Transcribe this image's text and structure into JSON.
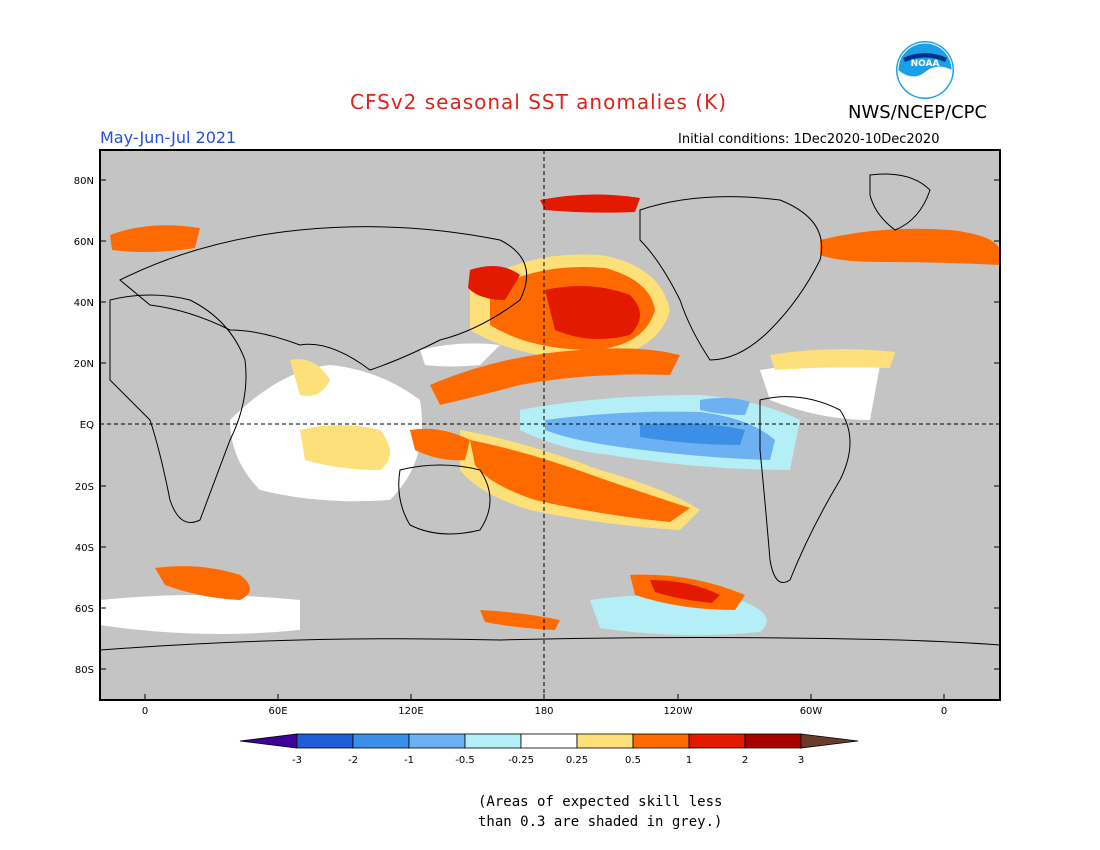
{
  "header": {
    "title": "CFSv2 seasonal SST anomalies (K)",
    "period": "May-Jun-Jul 2021",
    "agency": "NWS/NCEP/CPC",
    "initial_conditions": "Initial conditions: 1Dec2020-10Dec2020",
    "logo_text": "NOAA"
  },
  "map": {
    "lat_labels": [
      "80N",
      "60N",
      "40N",
      "20N",
      "EQ",
      "20S",
      "40S",
      "60S",
      "80S"
    ],
    "lon_labels": [
      "0",
      "60E",
      "120E",
      "180",
      "120W",
      "60W",
      "0"
    ],
    "grey_meaning": "Areas of expected skill less than 0.3 are shaded in grey."
  },
  "legend": {
    "tick_labels": [
      "-3",
      "-2",
      "-1",
      "-0.5",
      "-0.25",
      "0.25",
      "0.5",
      "1",
      "2",
      "3"
    ],
    "colors": [
      "#3d0099",
      "#1f5ed6",
      "#3b8fe6",
      "#6db1f2",
      "#b4eef6",
      "#ffffff",
      "#fde07a",
      "#ff6a00",
      "#e31a00",
      "#a80000",
      "#6b3a2a"
    ]
  },
  "note": {
    "line1": "(Areas of expected skill less",
    "line2": "than 0.3 are shaded in grey.)"
  },
  "colors": {
    "grey": "#c4c4c4",
    "title": "#e0231b",
    "period": "#2451d8"
  }
}
